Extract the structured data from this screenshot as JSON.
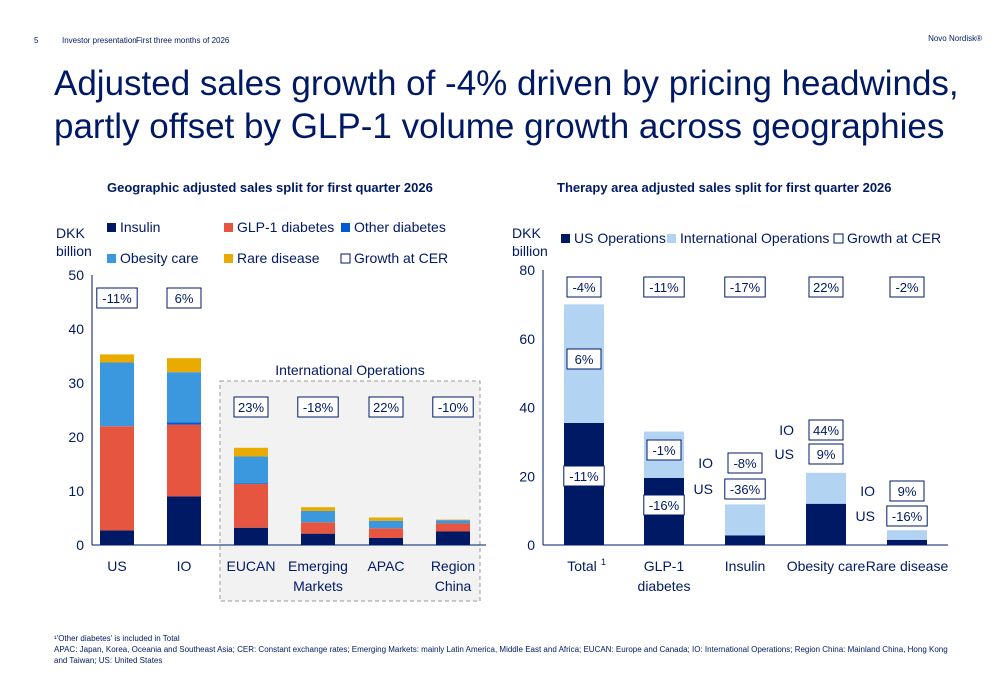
{
  "header": {
    "page_number": "5",
    "document": "Investor presentation",
    "period": "First three months of 2026",
    "brand": "Novo Nordisk®"
  },
  "headline": "Adjusted sales growth of -4% driven by pricing headwinds, partly offset by GLP-1 volume growth across geographies",
  "colors": {
    "insulin": "#001965",
    "glp1_diabetes": "#e6553f",
    "other_diabetes": "#005ad2",
    "obesity_care": "#3b97de",
    "rare_disease": "#eaab00",
    "us_operations": "#001965",
    "international_operations": "#b3d3f3"
  },
  "chart_data": [
    {
      "type": "bar",
      "stacked": true,
      "title": "Geographic adjusted sales split for first quarter 2026",
      "ylabel": "DKK billion",
      "ylim": [
        0,
        50
      ],
      "yticks": [
        0,
        10,
        20,
        30,
        40,
        50
      ],
      "grid": false,
      "legend_position": "top",
      "categories": [
        "US",
        "IO",
        "EUCAN",
        "Emerging Markets",
        "APAC",
        "Region China"
      ],
      "series": [
        {
          "name": "Insulin",
          "color": "#001965",
          "values": [
            2.7,
            9.0,
            3.2,
            2.1,
            1.3,
            2.5
          ]
        },
        {
          "name": "GLP-1 diabetes",
          "color": "#e6553f",
          "values": [
            19.3,
            13.3,
            8.1,
            2.1,
            1.8,
            1.5
          ]
        },
        {
          "name": "Other diabetes",
          "color": "#005ad2",
          "values": [
            0,
            0.4,
            0.1,
            0,
            0,
            0
          ]
        },
        {
          "name": "Obesity care",
          "color": "#3b97de",
          "values": [
            11.8,
            9.3,
            5.0,
            2.1,
            1.4,
            0.6
          ]
        },
        {
          "name": "Rare disease",
          "color": "#eaab00",
          "values": [
            1.5,
            2.6,
            1.6,
            0.7,
            0.6,
            0.1
          ]
        }
      ],
      "legend_extra": "Growth at CER",
      "growth_at_cer": [
        "-11%",
        "6%",
        "23%",
        "-18%",
        "22%",
        "-10%"
      ],
      "group_annotation": "International Operations"
    },
    {
      "type": "bar",
      "stacked": true,
      "title": "Therapy area adjusted sales split for first quarter 2026",
      "ylabel": "DKK billion",
      "ylim": [
        0,
        80
      ],
      "yticks": [
        0,
        20,
        40,
        60,
        80
      ],
      "grid": false,
      "legend_position": "top",
      "categories": [
        "Total",
        "GLP-1 diabetes",
        "Insulin",
        "Obesity care",
        "Rare disease"
      ],
      "category_footnote_marker": "1",
      "series": [
        {
          "name": "US Operations",
          "color": "#001965",
          "values": [
            35.5,
            19.5,
            2.8,
            12.0,
            1.5
          ]
        },
        {
          "name": "International Operations",
          "color": "#b3d3f3",
          "values": [
            34.5,
            13.5,
            9.0,
            9.0,
            2.8
          ]
        }
      ],
      "legend_extra": "Growth at CER",
      "growth_at_cer": [
        "-4%",
        "-11%",
        "-17%",
        "22%",
        "-2%"
      ],
      "segment_labels": {
        "Total": {
          "US": "-11%",
          "IO": "6%"
        },
        "GLP-1 diabetes": {
          "US": "-16%",
          "IO": "-1%"
        },
        "Insulin": {
          "IO": "-8%",
          "US": "-36%"
        },
        "Obesity care": {
          "IO": "44%",
          "US": "9%"
        },
        "Rare disease": {
          "IO": "9%",
          "US": "-16%"
        }
      },
      "side_tags": {
        "IO": "IO",
        "US": "US"
      }
    }
  ],
  "footnotes": [
    "¹'Other diabetes' is included in Total",
    "APAC: Japan, Korea, Oceania and Southeast Asia; CER: Constant exchange rates; Emerging Markets: mainly Latin America, Middle East and Africa; EUCAN: Europe and Canada; IO: International Operations; Region China: Mainland China, Hong Kong and Taiwan; US: United States"
  ]
}
